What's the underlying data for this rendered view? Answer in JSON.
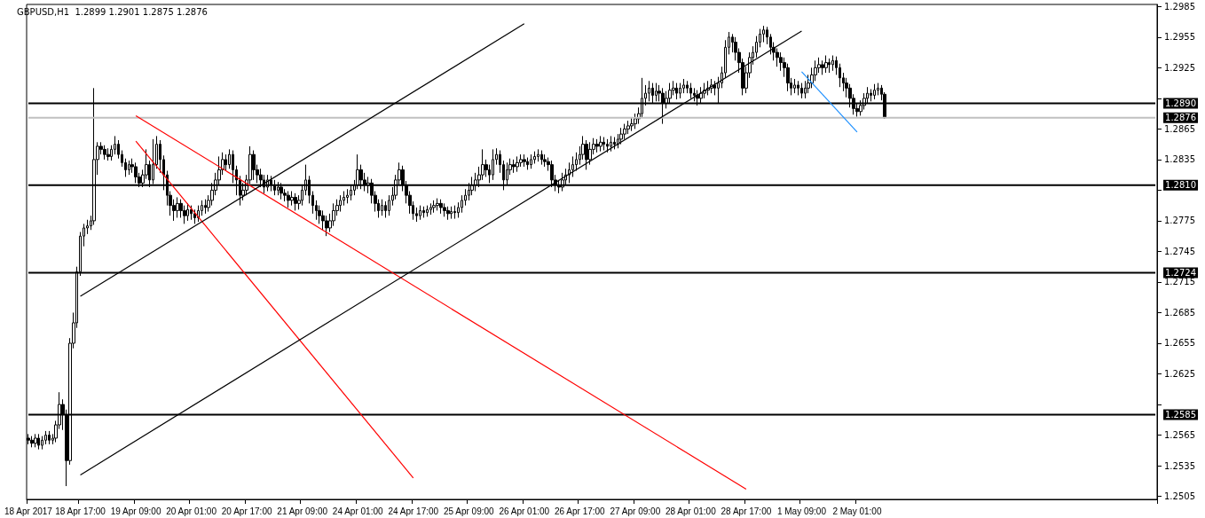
{
  "chart_data": {
    "type": "candlestick",
    "title": "GBPUSD,H1  1.2899 1.2901 1.2875 1.2876",
    "color": "#000000",
    "categories": [
      "18 Apr 2017",
      null,
      null,
      null,
      null,
      null,
      null,
      null,
      null,
      null,
      null,
      null,
      null,
      null,
      null,
      "18 Apr 17:00",
      null,
      null,
      null,
      null,
      null,
      null,
      null,
      null,
      null,
      null,
      null,
      null,
      null,
      null,
      null,
      "19 Apr 09:00",
      null,
      null,
      null,
      null,
      null,
      null,
      null,
      null,
      null,
      null,
      null,
      null,
      null,
      null,
      null,
      "20 Apr 01:00",
      null,
      null,
      null,
      null,
      null,
      null,
      null,
      null,
      null,
      null,
      null,
      null,
      null,
      null,
      null,
      "20 Apr 17:00",
      null,
      null,
      null,
      null,
      null,
      null,
      null,
      null,
      null,
      null,
      null,
      null,
      null,
      null,
      null,
      "21 Apr 09:00",
      null,
      null,
      null,
      null,
      null,
      null,
      null,
      null,
      null,
      null,
      null,
      null,
      null,
      null,
      null,
      "24 Apr 01:00",
      null,
      null,
      null,
      null,
      null,
      null,
      null,
      null,
      null,
      null,
      null,
      null,
      null,
      null,
      null,
      "24 Apr 17:00",
      null,
      null,
      null,
      null,
      null,
      null,
      null,
      null,
      null,
      null,
      null,
      null,
      null,
      null,
      null,
      "25 Apr 09:00",
      null,
      null,
      null,
      null,
      null,
      null,
      null,
      null,
      null,
      null,
      null,
      null,
      null,
      null,
      null,
      "26 Apr 01:00",
      null,
      null,
      null,
      null,
      null,
      null,
      null,
      null,
      null,
      null,
      null,
      null,
      null,
      null,
      null,
      "26 Apr 17:00",
      null,
      null,
      null,
      null,
      null,
      null,
      null,
      null,
      null,
      null,
      null,
      null,
      null,
      null,
      null,
      "27 Apr 09:00",
      null,
      null,
      null,
      null,
      null,
      null,
      null,
      null,
      null,
      null,
      null,
      null,
      null,
      null,
      null,
      "28 Apr 01:00",
      null,
      null,
      null,
      null,
      null,
      null,
      null,
      null,
      null,
      null,
      null,
      null,
      null,
      null,
      null,
      "28 Apr 17:00",
      null,
      null,
      null,
      null,
      null,
      null,
      null,
      null,
      null,
      null,
      null,
      null,
      null,
      null,
      null,
      "1 May 09:00",
      null,
      null,
      null,
      null,
      null,
      null,
      null,
      null,
      null,
      null,
      null,
      null,
      null,
      null,
      null,
      "2 May 01:00",
      null,
      null,
      null,
      null,
      null,
      null,
      null,
      null,
      null,
      null,
      null,
      null,
      null,
      null,
      null,
      null,
      null,
      null,
      null,
      null,
      null,
      null,
      null,
      null,
      null,
      null,
      null,
      null,
      null,
      null,
      null,
      null,
      null,
      null,
      null,
      null,
      null,
      null,
      null,
      null,
      null,
      null,
      null,
      null,
      null,
      null,
      null,
      null,
      null,
      null,
      null,
      null,
      null,
      null,
      null,
      null,
      null,
      null,
      null,
      null,
      null,
      null,
      null,
      null,
      null,
      null,
      null,
      null,
      null,
      null,
      null,
      null,
      null,
      null,
      null,
      null,
      null,
      null,
      null,
      null,
      null,
      null,
      null,
      null,
      null,
      null
    ],
    "ohlc": [
      [
        1.2562,
        1.2566,
        1.2556,
        1.256
      ],
      [
        1.256,
        1.2564,
        1.2553,
        1.2557
      ],
      [
        1.2557,
        1.2566,
        1.2553,
        1.2562
      ],
      [
        1.2562,
        1.2566,
        1.2551,
        1.2555
      ],
      [
        1.2555,
        1.2564,
        1.2551,
        1.256
      ],
      [
        1.256,
        1.2569,
        1.2556,
        1.2565
      ],
      [
        1.2565,
        1.2569,
        1.2556,
        1.256
      ],
      [
        1.256,
        1.2566,
        1.2556,
        1.2562
      ],
      [
        1.2562,
        1.2579,
        1.2558,
        1.2575
      ],
      [
        1.2575,
        1.2607,
        1.2571,
        1.2595
      ],
      [
        1.2595,
        1.26,
        1.257,
        1.2585
      ],
      [
        1.2585,
        1.259,
        1.2515,
        1.254
      ],
      [
        1.254,
        1.266,
        1.2536,
        1.2655
      ],
      [
        1.2655,
        1.2685,
        1.265,
        1.2675
      ],
      [
        1.2675,
        1.273,
        1.267,
        1.2725
      ],
      [
        1.2725,
        1.2764,
        1.2721,
        1.276
      ],
      [
        1.276,
        1.2772,
        1.275,
        1.2768
      ],
      [
        1.2768,
        1.2776,
        1.2762,
        1.277
      ],
      [
        1.277,
        1.278,
        1.2766,
        1.2775
      ],
      [
        1.2775,
        1.2905,
        1.2771,
        1.2835
      ],
      [
        1.2835,
        1.2852,
        1.282,
        1.2848
      ],
      [
        1.2848,
        1.2852,
        1.284,
        1.2845
      ],
      [
        1.2845,
        1.2849,
        1.2835,
        1.284
      ],
      [
        1.284,
        1.2846,
        1.2834,
        1.2838
      ],
      [
        1.2838,
        1.2849,
        1.2834,
        1.2845
      ],
      [
        1.2845,
        1.2858,
        1.284,
        1.285
      ],
      [
        1.285,
        1.2854,
        1.2836,
        1.284
      ],
      [
        1.284,
        1.2844,
        1.2828,
        1.2832
      ],
      [
        1.2832,
        1.2836,
        1.2818,
        1.2825
      ],
      [
        1.2825,
        1.2834,
        1.282,
        1.283
      ],
      [
        1.283,
        1.2836,
        1.2822,
        1.2828
      ],
      [
        1.2828,
        1.2832,
        1.2812,
        1.2818
      ],
      [
        1.2818,
        1.2822,
        1.2808,
        1.2812
      ],
      [
        1.2812,
        1.2825,
        1.2808,
        1.282
      ],
      [
        1.282,
        1.2845,
        1.2816,
        1.283
      ],
      [
        1.283,
        1.2834,
        1.2808,
        1.2815
      ],
      [
        1.2815,
        1.2855,
        1.2811,
        1.283
      ],
      [
        1.283,
        1.2858,
        1.2826,
        1.285
      ],
      [
        1.285,
        1.2854,
        1.2822,
        1.2835
      ],
      [
        1.2835,
        1.2839,
        1.2805,
        1.282
      ],
      [
        1.282,
        1.2824,
        1.279,
        1.28
      ],
      [
        1.28,
        1.2804,
        1.278,
        1.279
      ],
      [
        1.279,
        1.2796,
        1.2775,
        1.2785
      ],
      [
        1.2785,
        1.2798,
        1.2778,
        1.2792
      ],
      [
        1.2792,
        1.2796,
        1.2778,
        1.2785
      ],
      [
        1.2785,
        1.279,
        1.2772,
        1.278
      ],
      [
        1.278,
        1.2792,
        1.2775,
        1.2786
      ],
      [
        1.2786,
        1.279,
        1.2776,
        1.2782
      ],
      [
        1.2782,
        1.2786,
        1.2772,
        1.2778
      ],
      [
        1.2778,
        1.279,
        1.2774,
        1.2785
      ],
      [
        1.2785,
        1.2795,
        1.278,
        1.279
      ],
      [
        1.279,
        1.2796,
        1.2782,
        1.2788
      ],
      [
        1.2788,
        1.28,
        1.2784,
        1.2795
      ],
      [
        1.2795,
        1.2812,
        1.279,
        1.2805
      ],
      [
        1.2805,
        1.2822,
        1.28,
        1.2815
      ],
      [
        1.2815,
        1.2838,
        1.281,
        1.2825
      ],
      [
        1.2825,
        1.2842,
        1.282,
        1.2835
      ],
      [
        1.2835,
        1.284,
        1.2824,
        1.283
      ],
      [
        1.283,
        1.2845,
        1.2826,
        1.284
      ],
      [
        1.284,
        1.2844,
        1.2812,
        1.2825
      ],
      [
        1.2825,
        1.2829,
        1.28,
        1.2815
      ],
      [
        1.2815,
        1.2819,
        1.279,
        1.28
      ],
      [
        1.28,
        1.2812,
        1.2795,
        1.2805
      ],
      [
        1.2805,
        1.282,
        1.28,
        1.2815
      ],
      [
        1.2815,
        1.2848,
        1.2811,
        1.284
      ],
      [
        1.284,
        1.2844,
        1.2815,
        1.2825
      ],
      [
        1.2825,
        1.283,
        1.2812,
        1.282
      ],
      [
        1.282,
        1.2826,
        1.2808,
        1.2815
      ],
      [
        1.2815,
        1.282,
        1.2802,
        1.2808
      ],
      [
        1.2808,
        1.282,
        1.2804,
        1.2815
      ],
      [
        1.2815,
        1.2819,
        1.2804,
        1.281
      ],
      [
        1.281,
        1.2815,
        1.28,
        1.2805
      ],
      [
        1.2805,
        1.2813,
        1.28,
        1.2808
      ],
      [
        1.2808,
        1.2812,
        1.2796,
        1.2802
      ],
      [
        1.2802,
        1.2806,
        1.2794,
        1.28
      ],
      [
        1.28,
        1.2804,
        1.2788,
        1.2795
      ],
      [
        1.2795,
        1.2804,
        1.279,
        1.2798
      ],
      [
        1.2798,
        1.2802,
        1.2785,
        1.2792
      ],
      [
        1.2792,
        1.28,
        1.2786,
        1.2795
      ],
      [
        1.2795,
        1.281,
        1.279,
        1.2805
      ],
      [
        1.2805,
        1.283,
        1.28,
        1.2815
      ],
      [
        1.2815,
        1.2819,
        1.2792,
        1.28
      ],
      [
        1.28,
        1.2804,
        1.2782,
        1.279
      ],
      [
        1.279,
        1.2795,
        1.2776,
        1.2785
      ],
      [
        1.2785,
        1.279,
        1.2772,
        1.278
      ],
      [
        1.278,
        1.2785,
        1.2766,
        1.2775
      ],
      [
        1.2775,
        1.278,
        1.276,
        1.2768
      ],
      [
        1.2768,
        1.2782,
        1.2764,
        1.2775
      ],
      [
        1.2775,
        1.2792,
        1.277,
        1.2785
      ],
      [
        1.2785,
        1.2796,
        1.278,
        1.279
      ],
      [
        1.279,
        1.28,
        1.2784,
        1.2795
      ],
      [
        1.2795,
        1.2804,
        1.279,
        1.2798
      ],
      [
        1.2798,
        1.2806,
        1.2792,
        1.28
      ],
      [
        1.28,
        1.281,
        1.2795,
        1.2805
      ],
      [
        1.2805,
        1.2815,
        1.28,
        1.281
      ],
      [
        1.281,
        1.284,
        1.2806,
        1.2825
      ],
      [
        1.2825,
        1.283,
        1.2806,
        1.2815
      ],
      [
        1.2815,
        1.2822,
        1.2804,
        1.281
      ],
      [
        1.281,
        1.2818,
        1.2802,
        1.2812
      ],
      [
        1.2812,
        1.2816,
        1.2792,
        1.28
      ],
      [
        1.28,
        1.2804,
        1.2784,
        1.2792
      ],
      [
        1.2792,
        1.2796,
        1.2778,
        1.2785
      ],
      [
        1.2785,
        1.2796,
        1.278,
        1.279
      ],
      [
        1.279,
        1.2794,
        1.2778,
        1.2785
      ],
      [
        1.2785,
        1.28,
        1.278,
        1.2795
      ],
      [
        1.2795,
        1.2808,
        1.279,
        1.28
      ],
      [
        1.28,
        1.282,
        1.2796,
        1.2815
      ],
      [
        1.2815,
        1.2832,
        1.281,
        1.2825
      ],
      [
        1.2825,
        1.2829,
        1.2804,
        1.281
      ],
      [
        1.281,
        1.2814,
        1.2792,
        1.28
      ],
      [
        1.28,
        1.2804,
        1.2782,
        1.279
      ],
      [
        1.279,
        1.2794,
        1.2776,
        1.2782
      ],
      [
        1.2782,
        1.2788,
        1.2774,
        1.278
      ],
      [
        1.278,
        1.279,
        1.2776,
        1.2785
      ],
      [
        1.2785,
        1.2789,
        1.2778,
        1.2783
      ],
      [
        1.2783,
        1.279,
        1.2779,
        1.2786
      ],
      [
        1.2786,
        1.2792,
        1.2781,
        1.2788
      ],
      [
        1.2788,
        1.2795,
        1.2783,
        1.279
      ],
      [
        1.279,
        1.2797,
        1.2785,
        1.2792
      ],
      [
        1.2792,
        1.2796,
        1.2782,
        1.2788
      ],
      [
        1.2788,
        1.2792,
        1.2779,
        1.2785
      ],
      [
        1.2785,
        1.2789,
        1.2776,
        1.2782
      ],
      [
        1.2782,
        1.2789,
        1.2777,
        1.2784
      ],
      [
        1.2784,
        1.279,
        1.2777,
        1.2783
      ],
      [
        1.2783,
        1.2793,
        1.2778,
        1.2788
      ],
      [
        1.2788,
        1.28,
        1.2783,
        1.2795
      ],
      [
        1.2795,
        1.2806,
        1.279,
        1.28
      ],
      [
        1.28,
        1.2812,
        1.2795,
        1.2805
      ],
      [
        1.2805,
        1.2818,
        1.28,
        1.281
      ],
      [
        1.281,
        1.2822,
        1.2804,
        1.2815
      ],
      [
        1.2815,
        1.2828,
        1.2808,
        1.282
      ],
      [
        1.282,
        1.2845,
        1.2815,
        1.283
      ],
      [
        1.283,
        1.2835,
        1.2818,
        1.2825
      ],
      [
        1.2825,
        1.283,
        1.2812,
        1.282
      ],
      [
        1.282,
        1.2845,
        1.2815,
        1.2835
      ],
      [
        1.2835,
        1.2846,
        1.283,
        1.284
      ],
      [
        1.284,
        1.2844,
        1.2822,
        1.283
      ],
      [
        1.283,
        1.2834,
        1.2805,
        1.2815
      ],
      [
        1.2815,
        1.2832,
        1.281,
        1.2825
      ],
      [
        1.2825,
        1.2836,
        1.282,
        1.283
      ],
      [
        1.283,
        1.2835,
        1.2822,
        1.2828
      ],
      [
        1.2828,
        1.2838,
        1.2823,
        1.2832
      ],
      [
        1.2832,
        1.284,
        1.2828,
        1.2835
      ],
      [
        1.2835,
        1.284,
        1.2828,
        1.2833
      ],
      [
        1.2833,
        1.2837,
        1.2825,
        1.283
      ],
      [
        1.283,
        1.284,
        1.2826,
        1.2835
      ],
      [
        1.2835,
        1.2843,
        1.2831,
        1.2838
      ],
      [
        1.2838,
        1.2845,
        1.2833,
        1.284
      ],
      [
        1.284,
        1.2844,
        1.283,
        1.2835
      ],
      [
        1.2835,
        1.284,
        1.2828,
        1.2833
      ],
      [
        1.2833,
        1.2837,
        1.2824,
        1.283
      ],
      [
        1.283,
        1.2834,
        1.2808,
        1.2815
      ],
      [
        1.2815,
        1.282,
        1.2804,
        1.281
      ],
      [
        1.281,
        1.2815,
        1.2802,
        1.2808
      ],
      [
        1.2808,
        1.2822,
        1.2804,
        1.2815
      ],
      [
        1.2815,
        1.2826,
        1.281,
        1.282
      ],
      [
        1.282,
        1.2832,
        1.2812,
        1.2825
      ],
      [
        1.2825,
        1.2838,
        1.2818,
        1.283
      ],
      [
        1.283,
        1.2842,
        1.2824,
        1.2835
      ],
      [
        1.2835,
        1.2848,
        1.283,
        1.284
      ],
      [
        1.284,
        1.2858,
        1.2835,
        1.285
      ],
      [
        1.285,
        1.2854,
        1.2825,
        1.2835
      ],
      [
        1.2835,
        1.2852,
        1.283,
        1.2845
      ],
      [
        1.2845,
        1.2856,
        1.284,
        1.285
      ],
      [
        1.285,
        1.2855,
        1.2842,
        1.2848
      ],
      [
        1.2848,
        1.2858,
        1.2843,
        1.2852
      ],
      [
        1.2852,
        1.2857,
        1.2844,
        1.285
      ],
      [
        1.285,
        1.2855,
        1.2842,
        1.2848
      ],
      [
        1.2848,
        1.2858,
        1.2843,
        1.2852
      ],
      [
        1.2852,
        1.2857,
        1.2845,
        1.285
      ],
      [
        1.285,
        1.286,
        1.2846,
        1.2855
      ],
      [
        1.2855,
        1.2866,
        1.285,
        1.286
      ],
      [
        1.286,
        1.287,
        1.2855,
        1.2865
      ],
      [
        1.2865,
        1.2873,
        1.286,
        1.2868
      ],
      [
        1.2868,
        1.2876,
        1.2863,
        1.287
      ],
      [
        1.287,
        1.288,
        1.2865,
        1.2875
      ],
      [
        1.2875,
        1.2886,
        1.287,
        1.288
      ],
      [
        1.288,
        1.2915,
        1.2876,
        1.2895
      ],
      [
        1.2895,
        1.2908,
        1.2888,
        1.29
      ],
      [
        1.29,
        1.2912,
        1.2892,
        1.2905
      ],
      [
        1.2905,
        1.291,
        1.289,
        1.2898
      ],
      [
        1.2898,
        1.291,
        1.2892,
        1.2902
      ],
      [
        1.2902,
        1.2908,
        1.2892,
        1.29
      ],
      [
        1.29,
        1.2905,
        1.287,
        1.289
      ],
      [
        1.289,
        1.2902,
        1.2885,
        1.2895
      ],
      [
        1.2895,
        1.291,
        1.289,
        1.2903
      ],
      [
        1.2903,
        1.2912,
        1.2898,
        1.2905
      ],
      [
        1.2905,
        1.291,
        1.2894,
        1.29
      ],
      [
        1.29,
        1.291,
        1.2895,
        1.2905
      ],
      [
        1.2905,
        1.2914,
        1.29,
        1.2908
      ],
      [
        1.2908,
        1.2912,
        1.29,
        1.2905
      ],
      [
        1.2905,
        1.291,
        1.2895,
        1.29
      ],
      [
        1.29,
        1.2905,
        1.2892,
        1.2898
      ],
      [
        1.2898,
        1.2903,
        1.2888,
        1.2895
      ],
      [
        1.2895,
        1.2906,
        1.289,
        1.29
      ],
      [
        1.29,
        1.291,
        1.2895,
        1.2903
      ],
      [
        1.2903,
        1.2912,
        1.2898,
        1.2905
      ],
      [
        1.2905,
        1.2914,
        1.29,
        1.2908
      ],
      [
        1.2908,
        1.2912,
        1.2898,
        1.2905
      ],
      [
        1.2905,
        1.2916,
        1.289,
        1.291
      ],
      [
        1.291,
        1.2926,
        1.2905,
        1.292
      ],
      [
        1.292,
        1.2952,
        1.2915,
        1.2945
      ],
      [
        1.2945,
        1.296,
        1.2938,
        1.2955
      ],
      [
        1.2955,
        1.2958,
        1.294,
        1.295
      ],
      [
        1.295,
        1.2955,
        1.2932,
        1.294
      ],
      [
        1.294,
        1.2944,
        1.292,
        1.293
      ],
      [
        1.293,
        1.2934,
        1.2898,
        1.2905
      ],
      [
        1.2905,
        1.2926,
        1.29,
        1.292
      ],
      [
        1.292,
        1.294,
        1.2915,
        1.2935
      ],
      [
        1.2935,
        1.2946,
        1.2928,
        1.294
      ],
      [
        1.294,
        1.2956,
        1.2935,
        1.295
      ],
      [
        1.295,
        1.2963,
        1.2945,
        1.2958
      ],
      [
        1.2958,
        1.2966,
        1.295,
        1.2962
      ],
      [
        1.2962,
        1.2965,
        1.2948,
        1.2955
      ],
      [
        1.2955,
        1.2958,
        1.2938,
        1.2945
      ],
      [
        1.2945,
        1.295,
        1.2932,
        1.294
      ],
      [
        1.294,
        1.2944,
        1.2926,
        1.2935
      ],
      [
        1.2935,
        1.294,
        1.2922,
        1.293
      ],
      [
        1.293,
        1.2935,
        1.2916,
        1.2925
      ],
      [
        1.2925,
        1.2929,
        1.2902,
        1.291
      ],
      [
        1.291,
        1.2915,
        1.2898,
        1.2905
      ],
      [
        1.2905,
        1.2914,
        1.29,
        1.2908
      ],
      [
        1.2908,
        1.2912,
        1.2898,
        1.2905
      ],
      [
        1.2905,
        1.291,
        1.2895,
        1.29
      ],
      [
        1.29,
        1.2912,
        1.2895,
        1.2905
      ],
      [
        1.2905,
        1.2918,
        1.29,
        1.291
      ],
      [
        1.291,
        1.2925,
        1.2905,
        1.2918
      ],
      [
        1.2918,
        1.2932,
        1.2912,
        1.2925
      ],
      [
        1.2925,
        1.2935,
        1.292,
        1.2928
      ],
      [
        1.2928,
        1.2932,
        1.2918,
        1.2925
      ],
      [
        1.2925,
        1.2937,
        1.292,
        1.293
      ],
      [
        1.293,
        1.2934,
        1.292,
        1.2928
      ],
      [
        1.2928,
        1.2937,
        1.2922,
        1.2932
      ],
      [
        1.2932,
        1.2936,
        1.2918,
        1.2925
      ],
      [
        1.2925,
        1.2929,
        1.2906,
        1.2915
      ],
      [
        1.2915,
        1.292,
        1.2902,
        1.291
      ],
      [
        1.291,
        1.2915,
        1.2896,
        1.2905
      ],
      [
        1.2905,
        1.2909,
        1.2886,
        1.2895
      ],
      [
        1.2895,
        1.2899,
        1.2879,
        1.2885
      ],
      [
        1.2885,
        1.289,
        1.2877,
        1.2882
      ],
      [
        1.2882,
        1.2893,
        1.2878,
        1.2888
      ],
      [
        1.2888,
        1.29,
        1.2884,
        1.2895
      ],
      [
        1.2895,
        1.2906,
        1.289,
        1.29
      ],
      [
        1.29,
        1.2904,
        1.2892,
        1.2898
      ],
      [
        1.2898,
        1.2909,
        1.2894,
        1.2903
      ],
      [
        1.2903,
        1.291,
        1.2898,
        1.2905
      ],
      [
        1.2905,
        1.2908,
        1.2893,
        1.2899
      ],
      [
        1.2899,
        1.2901,
        1.2875,
        1.2876
      ],
      null,
      null,
      null,
      null,
      null,
      null,
      null,
      null,
      null,
      null,
      null,
      null,
      null,
      null,
      null,
      null,
      null,
      null,
      null,
      null,
      null,
      null,
      null,
      null,
      null,
      null,
      null,
      null,
      null,
      null,
      null,
      null,
      null,
      null,
      null,
      null,
      null,
      null,
      null,
      null,
      null,
      null,
      null,
      null,
      null,
      null,
      null,
      null,
      null,
      null,
      null,
      null,
      null,
      null,
      null,
      null,
      null,
      null,
      null,
      null,
      null,
      null,
      null,
      null,
      null,
      null,
      null,
      null,
      null,
      null,
      null,
      null,
      null,
      null,
      null,
      null,
      null,
      null
    ],
    "series": [
      {
        "type": "line",
        "color": "#ff0000",
        "x": [
          "19 Apr 09:00",
          "24 Apr 17:00"
        ],
        "values": [
          1.2853,
          1.2523
        ]
      },
      {
        "type": "line",
        "color": "#ff0000",
        "x": [
          "19 Apr 09:00",
          "28 Apr 17:00"
        ],
        "values": [
          1.2878,
          1.2512
        ]
      },
      {
        "type": "line",
        "color": "#000000",
        "x": [
          "18 Apr 17:00",
          "1 May 09:00"
        ],
        "values": [
          1.2526,
          1.2961
        ]
      },
      {
        "type": "line",
        "color": "#000000",
        "x": [
          "18 Apr 17:00",
          "26 Apr 01:00"
        ],
        "values": [
          1.2701,
          1.2968
        ]
      },
      {
        "type": "line",
        "color": "#1e90ff",
        "x": [
          "1 May 09:00",
          "2 May 01:00"
        ],
        "values": [
          1.2921,
          1.2862
        ]
      }
    ],
    "ylim": [
      1.2502,
      1.2987
    ],
    "yticks": [
      1.2505,
      1.2535,
      1.2565,
      {
        "value": 1.2595,
        "label": null
      },
      1.2625,
      1.2655,
      1.2685,
      1.2715,
      1.2745,
      1.2775,
      {
        "value": 1.2805,
        "label": null
      },
      1.2835,
      1.2865,
      {
        "value": 1.2895,
        "label": null
      },
      1.2925,
      1.2955,
      1.2985
    ],
    "ref_lines": [
      {
        "axis": "y",
        "value": 1.289,
        "label": "1.2890",
        "color": "#000000"
      },
      {
        "axis": "y",
        "value": 1.2876,
        "label": "1.2876",
        "color": "#c0c0c0"
      },
      {
        "axis": "y",
        "value": 1.281,
        "label": "1.2810",
        "color": "#000000"
      },
      {
        "axis": "y",
        "value": 1.2724,
        "label": "1.2724",
        "color": "#000000"
      },
      {
        "axis": "y",
        "value": 1.2585,
        "label": "1.2585",
        "color": "#000000"
      }
    ]
  }
}
